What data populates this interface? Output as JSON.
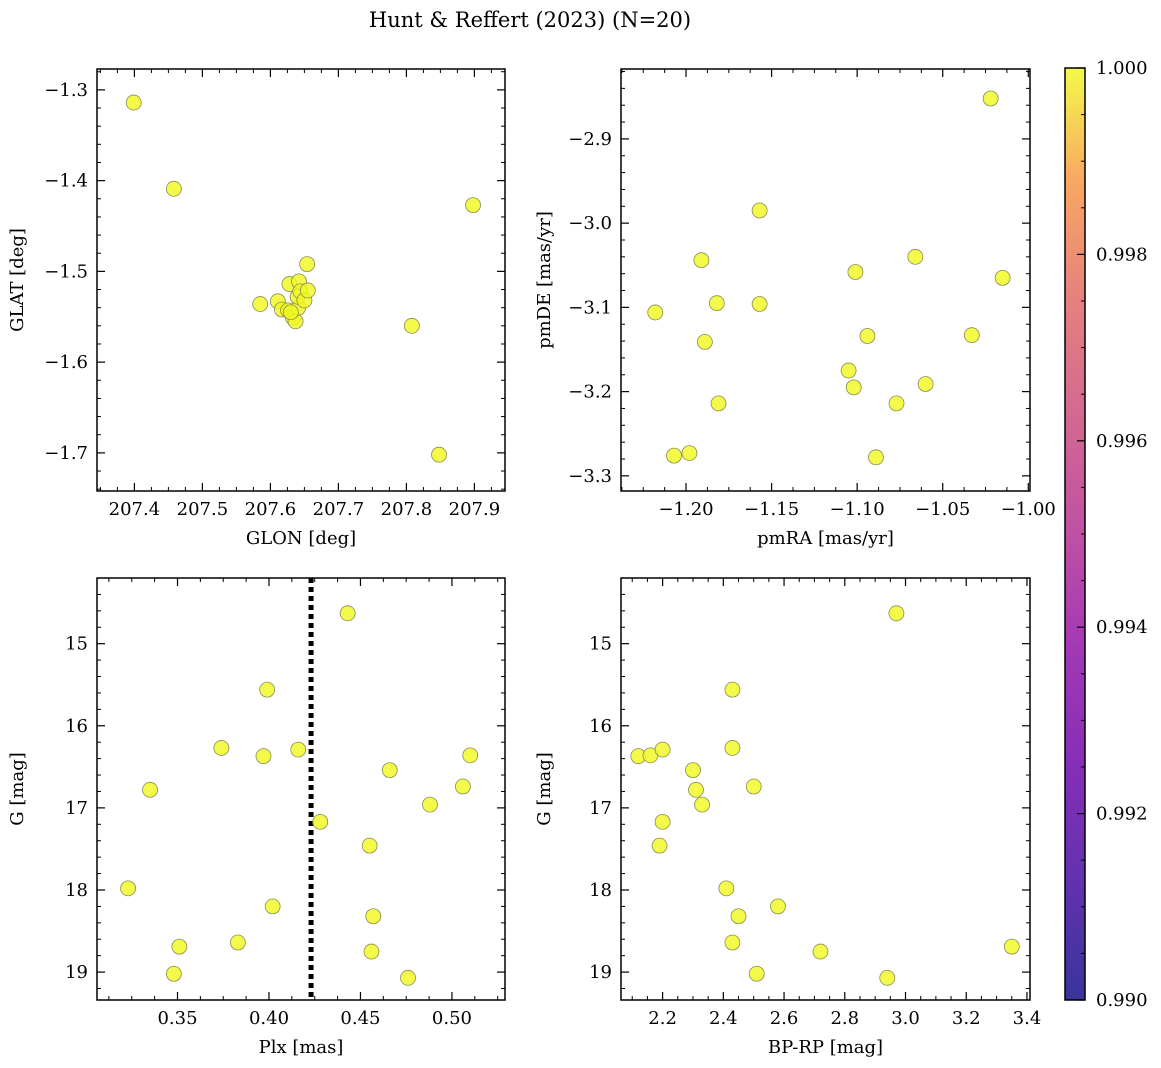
{
  "figure": {
    "title": "Hunt & Reffert (2023) (N=20)"
  },
  "colorbar": {
    "min": 0.99,
    "max": 1.0,
    "ticks": [
      0.99,
      0.992,
      0.994,
      0.996,
      0.998,
      1.0
    ],
    "tick_labels": [
      "0.990",
      "0.992",
      "0.994",
      "0.996",
      "0.998",
      "1.000"
    ],
    "colormap": "plasma"
  },
  "style": {
    "point_color": "#f0f921",
    "point_edge": "#8a8a55",
    "point_alpha": 0.82
  },
  "chart_data": [
    {
      "type": "scatter",
      "xlabel": "GLON [deg]",
      "ylabel": "GLAT [deg]",
      "xlim": [
        207.345,
        207.945
      ],
      "ylim": [
        -1.742,
        -1.277
      ],
      "xticks": [
        207.4,
        207.5,
        207.6,
        207.7,
        207.8,
        207.9
      ],
      "xtick_labels": [
        "207.4",
        "207.5",
        "207.6",
        "207.7",
        "207.8",
        "207.9"
      ],
      "yticks": [
        -1.3,
        -1.4,
        -1.5,
        -1.6,
        -1.7
      ],
      "ytick_labels": [
        "−1.3",
        "−1.4",
        "−1.5",
        "−1.6",
        "−1.7"
      ],
      "x": [
        207.399,
        207.458,
        207.898,
        207.808,
        207.848,
        207.585,
        207.611,
        207.617,
        207.628,
        207.626,
        207.633,
        207.637,
        207.641,
        207.642,
        207.64,
        207.644,
        207.65,
        207.654,
        207.655,
        207.63
      ],
      "y": [
        -1.314,
        -1.409,
        -1.427,
        -1.56,
        -1.702,
        -1.536,
        -1.533,
        -1.542,
        -1.514,
        -1.543,
        -1.551,
        -1.555,
        -1.54,
        -1.511,
        -1.528,
        -1.522,
        -1.532,
        -1.492,
        -1.521,
        -1.545
      ],
      "color_values": [
        1,
        1,
        1,
        1,
        1,
        1,
        1,
        1,
        1,
        1,
        1,
        1,
        1,
        1,
        1,
        1,
        1,
        1,
        1,
        1
      ]
    },
    {
      "type": "scatter",
      "xlabel": "pmRA [mas/yr]",
      "ylabel": "pmDE [mas/yr]",
      "xlim": [
        -1.238,
        -0.999
      ],
      "ylim": [
        -3.318,
        -2.817
      ],
      "xticks": [
        -1.2,
        -1.15,
        -1.1,
        -1.05,
        -1.0
      ],
      "xtick_labels": [
        "−1.20",
        "−1.15",
        "−1.10",
        "−1.05",
        "−1.00"
      ],
      "yticks": [
        -2.9,
        -3.0,
        -3.1,
        -3.2,
        -3.3
      ],
      "ytick_labels": [
        "−2.9",
        "−3.0",
        "−3.1",
        "−3.2",
        "−3.3"
      ],
      "x": [
        -1.022,
        -1.157,
        -1.191,
        -1.066,
        -1.015,
        -1.101,
        -1.218,
        -1.182,
        -1.157,
        -1.094,
        -1.033,
        -1.189,
        -1.105,
        -1.102,
        -1.06,
        -1.181,
        -1.077,
        -1.207,
        -1.198,
        -1.089
      ],
      "y": [
        -2.852,
        -2.985,
        -3.044,
        -3.04,
        -3.065,
        -3.058,
        -3.106,
        -3.095,
        -3.096,
        -3.134,
        -3.133,
        -3.141,
        -3.175,
        -3.195,
        -3.191,
        -3.214,
        -3.214,
        -3.276,
        -3.273,
        -3.278
      ],
      "color_values": [
        1,
        1,
        1,
        1,
        1,
        1,
        1,
        1,
        1,
        1,
        1,
        1,
        1,
        1,
        1,
        1,
        1,
        1,
        1,
        1
      ]
    },
    {
      "type": "scatter",
      "xlabel": "Plx [mas]",
      "ylabel": "G [mag]",
      "xlim": [
        0.306,
        0.529
      ],
      "ylim": [
        19.34,
        14.2
      ],
      "invert_y": true,
      "xticks": [
        0.35,
        0.4,
        0.45,
        0.5
      ],
      "xtick_labels": [
        "0.35",
        "0.40",
        "0.45",
        "0.50"
      ],
      "yticks": [
        15,
        16,
        17,
        18,
        19
      ],
      "ytick_labels": [
        "15",
        "16",
        "17",
        "18",
        "19"
      ],
      "reference_line": {
        "orientation": "vertical",
        "x": 0.423,
        "style": "dotted"
      },
      "x": [
        0.443,
        0.399,
        0.374,
        0.397,
        0.416,
        0.51,
        0.466,
        0.335,
        0.506,
        0.488,
        0.428,
        0.455,
        0.323,
        0.402,
        0.457,
        0.383,
        0.351,
        0.456,
        0.348,
        0.476
      ],
      "y": [
        14.63,
        15.56,
        16.27,
        16.37,
        16.29,
        16.36,
        16.54,
        16.78,
        16.74,
        16.96,
        17.17,
        17.46,
        17.98,
        18.2,
        18.32,
        18.64,
        18.69,
        18.75,
        19.02,
        19.07
      ],
      "color_values": [
        1,
        1,
        1,
        1,
        1,
        1,
        1,
        1,
        1,
        1,
        1,
        1,
        1,
        1,
        1,
        1,
        1,
        1,
        1,
        1
      ]
    },
    {
      "type": "scatter",
      "xlabel": "BP-RP [mag]",
      "ylabel": "G [mag]",
      "xlim": [
        2.063,
        3.41
      ],
      "ylim": [
        19.34,
        14.2
      ],
      "invert_y": true,
      "xticks": [
        2.2,
        2.4,
        2.6,
        2.8,
        3.0,
        3.2,
        3.4
      ],
      "xtick_labels": [
        "2.2",
        "2.4",
        "2.6",
        "2.8",
        "3.0",
        "3.2",
        "3.4"
      ],
      "yticks": [
        15,
        16,
        17,
        18,
        19
      ],
      "ytick_labels": [
        "15",
        "16",
        "17",
        "18",
        "19"
      ],
      "x": [
        2.97,
        2.43,
        2.12,
        2.16,
        2.2,
        2.43,
        2.3,
        2.31,
        2.5,
        2.33,
        2.2,
        2.19,
        2.41,
        2.58,
        2.45,
        2.43,
        3.35,
        2.72,
        2.51,
        2.94
      ],
      "y": [
        14.63,
        15.56,
        16.37,
        16.36,
        16.29,
        16.27,
        16.54,
        16.78,
        16.74,
        16.96,
        17.17,
        17.46,
        17.98,
        18.2,
        18.32,
        18.64,
        18.69,
        18.75,
        19.02,
        19.07
      ],
      "color_values": [
        1,
        1,
        1,
        1,
        1,
        1,
        1,
        1,
        1,
        1,
        1,
        1,
        1,
        1,
        1,
        1,
        1,
        1,
        1,
        1
      ]
    }
  ]
}
